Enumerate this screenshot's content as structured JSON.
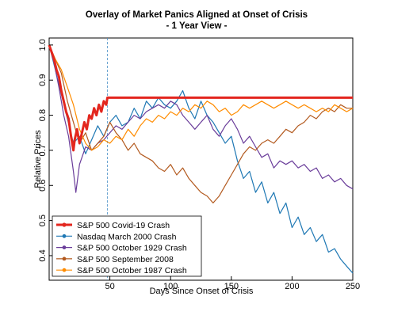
{
  "chart_data": {
    "type": "line",
    "title": "Overlay of Market Panics Aligned at Onset of Crisis",
    "subtitle": "- 1 Year View -",
    "xlabel": "Days Since Onset of Crisis",
    "ylabel": "Relative Prices",
    "xlim": [
      0,
      250
    ],
    "ylim": [
      0.33,
      1.02
    ],
    "x_ticks": [
      50,
      100,
      150,
      200,
      250
    ],
    "y_ticks": [
      0.4,
      0.5,
      0.6,
      0.7,
      0.8,
      0.9,
      1.0
    ],
    "x_tick_labels": [
      "50",
      "100",
      "150",
      "200",
      "250"
    ],
    "y_tick_labels": [
      "0.4",
      "0.5",
      "0.6",
      "0.7",
      "0.8",
      "0.9",
      "1.0"
    ],
    "vline": {
      "x": 48,
      "color": "#4a90c8"
    },
    "legend_position": "bottom-left",
    "series": [
      {
        "name": "S&P 500 Covid-19 Crash",
        "color": "#e3261e",
        "width": 3,
        "points": [
          [
            0,
            1.0
          ],
          [
            2,
            0.98
          ],
          [
            4,
            0.96
          ],
          [
            6,
            0.93
          ],
          [
            8,
            0.91
          ],
          [
            10,
            0.87
          ],
          [
            12,
            0.84
          ],
          [
            14,
            0.81
          ],
          [
            16,
            0.79
          ],
          [
            18,
            0.74
          ],
          [
            20,
            0.7
          ],
          [
            21,
            0.73
          ],
          [
            23,
            0.76
          ],
          [
            25,
            0.72
          ],
          [
            27,
            0.75
          ],
          [
            29,
            0.78
          ],
          [
            31,
            0.76
          ],
          [
            33,
            0.8
          ],
          [
            35,
            0.79
          ],
          [
            37,
            0.82
          ],
          [
            39,
            0.8
          ],
          [
            41,
            0.83
          ],
          [
            43,
            0.81
          ],
          [
            45,
            0.84
          ],
          [
            47,
            0.83
          ],
          [
            48,
            0.85
          ],
          [
            250,
            0.85
          ]
        ]
      },
      {
        "name": "Nasdaq March 2000 Crash",
        "color": "#1f78b4",
        "width": 1.2,
        "points": [
          [
            0,
            1.0
          ],
          [
            5,
            0.93
          ],
          [
            10,
            0.86
          ],
          [
            15,
            0.79
          ],
          [
            20,
            0.72
          ],
          [
            25,
            0.74
          ],
          [
            30,
            0.69
          ],
          [
            35,
            0.73
          ],
          [
            40,
            0.77
          ],
          [
            45,
            0.74
          ],
          [
            50,
            0.78
          ],
          [
            55,
            0.8
          ],
          [
            60,
            0.77
          ],
          [
            65,
            0.78
          ],
          [
            70,
            0.82
          ],
          [
            75,
            0.79
          ],
          [
            80,
            0.84
          ],
          [
            85,
            0.82
          ],
          [
            90,
            0.85
          ],
          [
            95,
            0.83
          ],
          [
            100,
            0.82
          ],
          [
            105,
            0.84
          ],
          [
            110,
            0.87
          ],
          [
            115,
            0.82
          ],
          [
            120,
            0.79
          ],
          [
            125,
            0.84
          ],
          [
            130,
            0.8
          ],
          [
            135,
            0.78
          ],
          [
            140,
            0.75
          ],
          [
            145,
            0.72
          ],
          [
            150,
            0.74
          ],
          [
            155,
            0.67
          ],
          [
            160,
            0.62
          ],
          [
            165,
            0.64
          ],
          [
            170,
            0.58
          ],
          [
            175,
            0.61
          ],
          [
            180,
            0.55
          ],
          [
            185,
            0.58
          ],
          [
            190,
            0.52
          ],
          [
            195,
            0.55
          ],
          [
            200,
            0.48
          ],
          [
            205,
            0.51
          ],
          [
            210,
            0.46
          ],
          [
            215,
            0.48
          ],
          [
            220,
            0.44
          ],
          [
            225,
            0.46
          ],
          [
            230,
            0.41
          ],
          [
            235,
            0.42
          ],
          [
            240,
            0.39
          ],
          [
            245,
            0.37
          ],
          [
            250,
            0.35
          ]
        ]
      },
      {
        "name": "S&P 500 October 1929 Crash",
        "color": "#6a3d9a",
        "width": 1.2,
        "points": [
          [
            0,
            1.0
          ],
          [
            4,
            0.95
          ],
          [
            8,
            0.88
          ],
          [
            12,
            0.8
          ],
          [
            16,
            0.74
          ],
          [
            20,
            0.64
          ],
          [
            22,
            0.58
          ],
          [
            25,
            0.66
          ],
          [
            30,
            0.71
          ],
          [
            35,
            0.7
          ],
          [
            40,
            0.72
          ],
          [
            45,
            0.73
          ],
          [
            50,
            0.75
          ],
          [
            55,
            0.77
          ],
          [
            60,
            0.76
          ],
          [
            65,
            0.78
          ],
          [
            70,
            0.8
          ],
          [
            75,
            0.79
          ],
          [
            80,
            0.81
          ],
          [
            85,
            0.82
          ],
          [
            90,
            0.83
          ],
          [
            95,
            0.82
          ],
          [
            100,
            0.84
          ],
          [
            105,
            0.83
          ],
          [
            110,
            0.8
          ],
          [
            115,
            0.78
          ],
          [
            120,
            0.76
          ],
          [
            125,
            0.78
          ],
          [
            130,
            0.8
          ],
          [
            135,
            0.76
          ],
          [
            140,
            0.74
          ],
          [
            145,
            0.77
          ],
          [
            150,
            0.79
          ],
          [
            155,
            0.76
          ],
          [
            160,
            0.72
          ],
          [
            165,
            0.74
          ],
          [
            170,
            0.71
          ],
          [
            175,
            0.68
          ],
          [
            180,
            0.69
          ],
          [
            185,
            0.65
          ],
          [
            190,
            0.67
          ],
          [
            195,
            0.66
          ],
          [
            200,
            0.67
          ],
          [
            205,
            0.65
          ],
          [
            210,
            0.66
          ],
          [
            215,
            0.64
          ],
          [
            220,
            0.65
          ],
          [
            225,
            0.62
          ],
          [
            230,
            0.63
          ],
          [
            235,
            0.61
          ],
          [
            240,
            0.62
          ],
          [
            245,
            0.6
          ],
          [
            250,
            0.59
          ]
        ]
      },
      {
        "name": "S&P 500 September 2008",
        "color": "#b35a1f",
        "width": 1.2,
        "points": [
          [
            0,
            1.0
          ],
          [
            5,
            0.96
          ],
          [
            10,
            0.92
          ],
          [
            15,
            0.84
          ],
          [
            20,
            0.78
          ],
          [
            25,
            0.72
          ],
          [
            30,
            0.75
          ],
          [
            35,
            0.7
          ],
          [
            40,
            0.72
          ],
          [
            45,
            0.74
          ],
          [
            50,
            0.78
          ],
          [
            55,
            0.75
          ],
          [
            60,
            0.73
          ],
          [
            65,
            0.7
          ],
          [
            70,
            0.72
          ],
          [
            75,
            0.69
          ],
          [
            80,
            0.68
          ],
          [
            85,
            0.67
          ],
          [
            90,
            0.65
          ],
          [
            95,
            0.64
          ],
          [
            100,
            0.66
          ],
          [
            105,
            0.63
          ],
          [
            110,
            0.65
          ],
          [
            115,
            0.62
          ],
          [
            120,
            0.6
          ],
          [
            125,
            0.58
          ],
          [
            130,
            0.57
          ],
          [
            135,
            0.55
          ],
          [
            140,
            0.57
          ],
          [
            145,
            0.6
          ],
          [
            150,
            0.63
          ],
          [
            155,
            0.66
          ],
          [
            160,
            0.69
          ],
          [
            165,
            0.71
          ],
          [
            170,
            0.7
          ],
          [
            175,
            0.72
          ],
          [
            180,
            0.73
          ],
          [
            185,
            0.72
          ],
          [
            190,
            0.74
          ],
          [
            195,
            0.76
          ],
          [
            200,
            0.75
          ],
          [
            205,
            0.77
          ],
          [
            210,
            0.78
          ],
          [
            215,
            0.8
          ],
          [
            220,
            0.79
          ],
          [
            225,
            0.81
          ],
          [
            230,
            0.82
          ],
          [
            235,
            0.81
          ],
          [
            240,
            0.83
          ],
          [
            245,
            0.82
          ],
          [
            250,
            0.82
          ]
        ]
      },
      {
        "name": "S&P 500 October 1987 Crash",
        "color": "#ff8c00",
        "width": 1.2,
        "points": [
          [
            0,
            1.0
          ],
          [
            5,
            0.96
          ],
          [
            10,
            0.93
          ],
          [
            15,
            0.88
          ],
          [
            20,
            0.83
          ],
          [
            25,
            0.76
          ],
          [
            30,
            0.72
          ],
          [
            35,
            0.7
          ],
          [
            40,
            0.71
          ],
          [
            45,
            0.73
          ],
          [
            50,
            0.72
          ],
          [
            55,
            0.74
          ],
          [
            60,
            0.73
          ],
          [
            65,
            0.76
          ],
          [
            70,
            0.74
          ],
          [
            75,
            0.77
          ],
          [
            80,
            0.79
          ],
          [
            85,
            0.78
          ],
          [
            90,
            0.8
          ],
          [
            95,
            0.79
          ],
          [
            100,
            0.81
          ],
          [
            105,
            0.8
          ],
          [
            110,
            0.82
          ],
          [
            115,
            0.81
          ],
          [
            120,
            0.83
          ],
          [
            125,
            0.82
          ],
          [
            130,
            0.84
          ],
          [
            135,
            0.83
          ],
          [
            140,
            0.81
          ],
          [
            145,
            0.82
          ],
          [
            150,
            0.8
          ],
          [
            155,
            0.81
          ],
          [
            160,
            0.83
          ],
          [
            165,
            0.82
          ],
          [
            170,
            0.83
          ],
          [
            175,
            0.84
          ],
          [
            180,
            0.83
          ],
          [
            185,
            0.82
          ],
          [
            190,
            0.83
          ],
          [
            195,
            0.84
          ],
          [
            200,
            0.83
          ],
          [
            205,
            0.82
          ],
          [
            210,
            0.83
          ],
          [
            215,
            0.82
          ],
          [
            220,
            0.81
          ],
          [
            225,
            0.82
          ],
          [
            230,
            0.81
          ],
          [
            235,
            0.83
          ],
          [
            240,
            0.82
          ],
          [
            245,
            0.81
          ],
          [
            250,
            0.82
          ]
        ]
      }
    ]
  }
}
